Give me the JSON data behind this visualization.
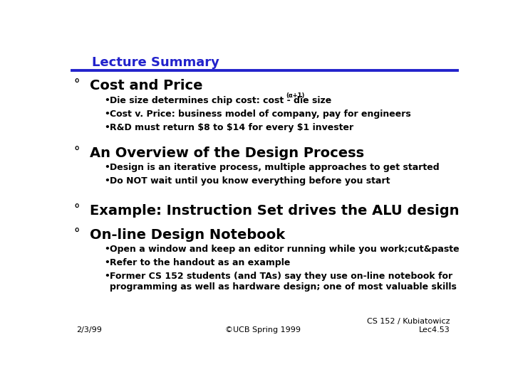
{
  "title": "Lecture Summary",
  "title_color": "#2222cc",
  "bg_color": "#ffffff",
  "line_color": "#2222cc",
  "text_color": "#000000",
  "sections": [
    {
      "header": "Cost and Price",
      "bullets": [
        "Die size determines chip cost: cost - die size",
        "Cost v. Price: business model of company, pay for engineers",
        "R&D must return $8 to $14 for every $1 invester"
      ]
    },
    {
      "header": "An Overview of the Design Process",
      "bullets": [
        "Design is an iterative process, multiple approaches to get started",
        "Do NOT wait until you know everything before you start"
      ]
    },
    {
      "header": "Example: Instruction Set drives the ALU design",
      "bullets": []
    },
    {
      "header": "On-line Design Notebook",
      "bullets": [
        "Open a window and keep an editor running while you work;cut&paste",
        "Refer to the handout as an example",
        "Former CS 152 students (and TAs) say they use on-line notebook for\nprogramming as well as hardware design; one of most valuable skills"
      ]
    }
  ],
  "footer_left": "2/3/99",
  "footer_center": "©UCB Spring 1999",
  "footer_right": "CS 152 / Kubiatowicz\nLec4.53",
  "title_fontsize": 13,
  "header_fontsize": 14,
  "bullet_fontsize": 9,
  "footer_fontsize": 8,
  "degree_fontsize": 12
}
